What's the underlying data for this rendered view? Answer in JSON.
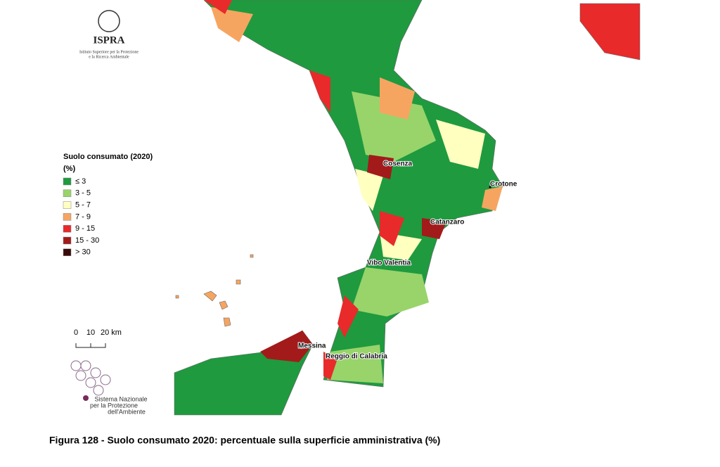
{
  "header": {
    "logo_name": "ISPRA",
    "logo_subtitle_1": "Istituto Superiore per la Protezione",
    "logo_subtitle_2": "e la Ricerca Ambientale"
  },
  "legend": {
    "title_1": "Suolo consumato (2020)",
    "title_2": "(%)",
    "items": [
      {
        "label": "≤ 3",
        "color": "#1f9a3f"
      },
      {
        "label": "3 - 5",
        "color": "#98d46a"
      },
      {
        "label": "5 - 7",
        "color": "#ffffc0"
      },
      {
        "label": "7 - 9",
        "color": "#f6a561"
      },
      {
        "label": "9 - 15",
        "color": "#e82a2a"
      },
      {
        "label": "15 - 30",
        "color": "#a31a1a"
      },
      {
        "label": "> 30",
        "color": "#3a0a0a"
      }
    ]
  },
  "map_labels": [
    "Cosenza",
    "Crotone",
    "Catanzaro",
    "Vibo Valentia",
    "Messina",
    "Reggio di Calabria"
  ],
  "scale_bar": {
    "labels": [
      "0",
      "10",
      "20 km"
    ]
  },
  "footer_logo": {
    "lines": [
      "Sistema Nazionale",
      "per la Protezione",
      "dell'Ambiente"
    ]
  },
  "caption": "Figura 128 - Suolo consumato 2020: percentuale sulla superficie amministrativa (%)"
}
